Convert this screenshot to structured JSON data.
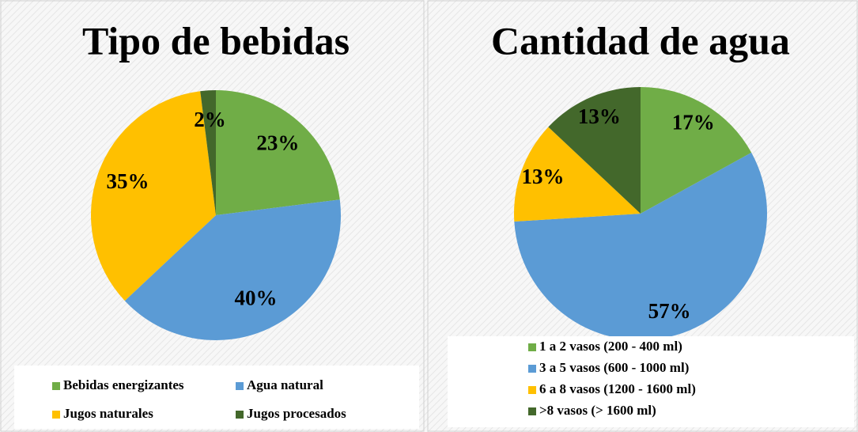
{
  "chart_data": [
    {
      "type": "pie",
      "title": "Tipo de bebidas",
      "categories": [
        "Bebidas energizantes",
        "Agua natural",
        "Jugos naturales",
        "Jugos procesados"
      ],
      "values": [
        23,
        40,
        35,
        2
      ],
      "value_labels": [
        "23%",
        "40%",
        "35%",
        "2%"
      ],
      "colors": [
        "#70ad47",
        "#5b9bd5",
        "#ffc000",
        "#43682b"
      ]
    },
    {
      "type": "pie",
      "title": "Cantidad de agua",
      "categories": [
        "1 a 2 vasos (200 - 400 ml)",
        "3 a 5 vasos (600 - 1000 ml)",
        "6 a 8 vasos (1200 - 1600 ml)",
        ">8 vasos (> 1600 ml)"
      ],
      "values": [
        17,
        57,
        13,
        13
      ],
      "value_labels": [
        "17%",
        "57%",
        "13%",
        "13%"
      ],
      "colors": [
        "#70ad47",
        "#5b9bd5",
        "#ffc000",
        "#43682b"
      ]
    }
  ]
}
